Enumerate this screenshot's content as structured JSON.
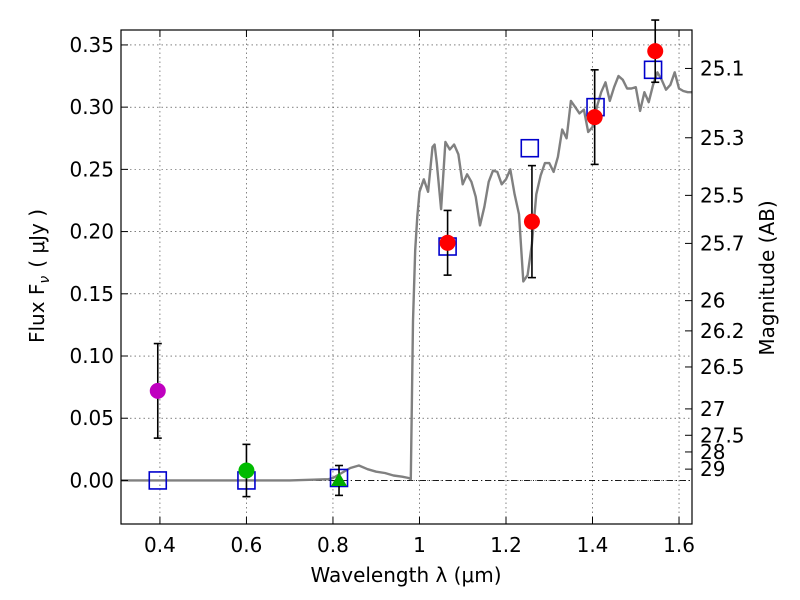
{
  "chart_data": {
    "type": "scatter",
    "xlabel": "Wavelength  λ (μm)",
    "ylabel": "Flux  F",
    "ylabel_sub": "ν",
    "ylabel_unit": "( μJy )",
    "ylabel_right": "Magnitude (AB)",
    "xlim": [
      0.31,
      1.63
    ],
    "ylim": [
      -0.035,
      0.362
    ],
    "grid": true,
    "x_ticks": [
      0.4,
      0.6,
      0.8,
      1.0,
      1.2,
      1.4,
      1.6
    ],
    "x_tick_labels": [
      "0.4",
      "0.6",
      "0.8",
      "1",
      "1.2",
      "1.4",
      "1.6"
    ],
    "y_ticks": [
      0.0,
      0.05,
      0.1,
      0.15,
      0.2,
      0.25,
      0.3,
      0.35
    ],
    "y_tick_labels": [
      "0.00",
      "0.05",
      "0.10",
      "0.15",
      "0.20",
      "0.25",
      "0.30",
      "0.35"
    ],
    "mag_ticks": [
      {
        "label": "25.1",
        "flux": 0.3311
      },
      {
        "label": "25.3",
        "flux": 0.2754
      },
      {
        "label": "25.5",
        "flux": 0.2291
      },
      {
        "label": "25.7",
        "flux": 0.1905
      },
      {
        "label": "26",
        "flux": 0.1445
      },
      {
        "label": "26.2",
        "flux": 0.1202
      },
      {
        "label": "26.5",
        "flux": 0.0912
      },
      {
        "label": "27",
        "flux": 0.0575
      },
      {
        "label": "27.5",
        "flux": 0.0363
      },
      {
        "label": "28",
        "flux": 0.0229
      },
      {
        "label": "29",
        "flux": 0.0091
      }
    ],
    "observed": [
      {
        "x": 0.395,
        "y": 0.072,
        "err": 0.038,
        "color": "#bf00bf",
        "marker": "circle"
      },
      {
        "x": 0.6,
        "y": 0.008,
        "err": 0.021,
        "color": "#00bb00",
        "marker": "circle"
      },
      {
        "x": 0.814,
        "y": 0.0,
        "err": 0.012,
        "color": "#00aa00",
        "marker": "triangle"
      },
      {
        "x": 1.065,
        "y": 0.191,
        "err": 0.026,
        "color": "#ff0000",
        "marker": "circle"
      },
      {
        "x": 1.26,
        "y": 0.208,
        "err": 0.045,
        "color": "#ff0000",
        "marker": "circle"
      },
      {
        "x": 1.405,
        "y": 0.292,
        "err": 0.038,
        "color": "#ff0000",
        "marker": "circle"
      },
      {
        "x": 1.545,
        "y": 0.345,
        "err": 0.025,
        "color": "#ff0000",
        "marker": "circle"
      }
    ],
    "model_photometry": {
      "color": "#0000cc",
      "marker": "square",
      "points": [
        {
          "x": 0.395,
          "y": 0.0
        },
        {
          "x": 0.6,
          "y": 0.0
        },
        {
          "x": 0.814,
          "y": 0.002
        },
        {
          "x": 1.065,
          "y": 0.188
        },
        {
          "x": 1.255,
          "y": 0.267
        },
        {
          "x": 1.407,
          "y": 0.3
        },
        {
          "x": 1.54,
          "y": 0.33
        }
      ]
    },
    "model_spectrum": {
      "color": "#808080",
      "x": [
        0.31,
        0.4,
        0.5,
        0.6,
        0.7,
        0.79,
        0.8,
        0.82,
        0.84,
        0.86,
        0.88,
        0.9,
        0.92,
        0.94,
        0.96,
        0.975,
        0.98,
        0.985,
        0.99,
        0.995,
        1.0,
        1.01,
        1.02,
        1.03,
        1.035,
        1.04,
        1.05,
        1.06,
        1.07,
        1.08,
        1.09,
        1.1,
        1.11,
        1.12,
        1.13,
        1.14,
        1.15,
        1.16,
        1.17,
        1.18,
        1.19,
        1.2,
        1.21,
        1.22,
        1.23,
        1.24,
        1.25,
        1.26,
        1.27,
        1.28,
        1.29,
        1.3,
        1.31,
        1.32,
        1.33,
        1.34,
        1.35,
        1.36,
        1.37,
        1.38,
        1.39,
        1.4,
        1.41,
        1.42,
        1.43,
        1.44,
        1.45,
        1.46,
        1.47,
        1.48,
        1.49,
        1.5,
        1.51,
        1.52,
        1.53,
        1.54,
        1.55,
        1.56,
        1.57,
        1.58,
        1.59,
        1.6,
        1.61,
        1.62,
        1.63
      ],
      "y": [
        0.0,
        0.0,
        0.0,
        0.0,
        0.0,
        0.001,
        0.002,
        0.006,
        0.01,
        0.012,
        0.009,
        0.007,
        0.006,
        0.004,
        0.003,
        0.002,
        0.001,
        0.128,
        0.185,
        0.212,
        0.232,
        0.242,
        0.232,
        0.268,
        0.27,
        0.255,
        0.218,
        0.272,
        0.266,
        0.27,
        0.262,
        0.238,
        0.246,
        0.24,
        0.228,
        0.205,
        0.22,
        0.24,
        0.249,
        0.248,
        0.238,
        0.242,
        0.25,
        0.23,
        0.214,
        0.16,
        0.165,
        0.19,
        0.23,
        0.245,
        0.255,
        0.255,
        0.248,
        0.26,
        0.282,
        0.275,
        0.305,
        0.3,
        0.295,
        0.298,
        0.28,
        0.284,
        0.3,
        0.312,
        0.32,
        0.305,
        0.316,
        0.325,
        0.322,
        0.315,
        0.315,
        0.316,
        0.297,
        0.312,
        0.304,
        0.318,
        0.328,
        0.322,
        0.314,
        0.318,
        0.328,
        0.315,
        0.313,
        0.312,
        0.312
      ]
    }
  }
}
